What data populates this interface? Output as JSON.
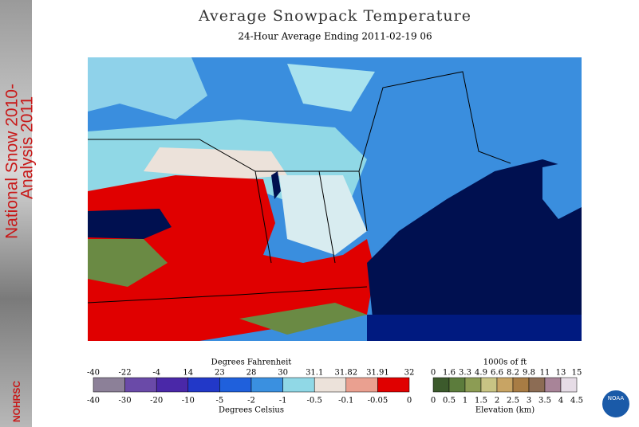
{
  "sidebar": {
    "line1": "National Snow 2010-",
    "line2": "Analysis 2011",
    "org": "NOHRSC"
  },
  "header": {
    "title": "Average Snowpack Temperature",
    "subtitle": "24-Hour Average Ending 2011-02-19 06"
  },
  "temperature_legend": {
    "top_label": "Degrees Fahrenheit",
    "bottom_label": "Degrees Celsius",
    "fahrenheit": [
      -40,
      -22,
      -4,
      14,
      23,
      28,
      30,
      31.1,
      31.82,
      31.91,
      32
    ],
    "celsius": [
      -40,
      -30,
      -20,
      -10,
      -5,
      -2,
      -1,
      -0.5,
      -0.1,
      -0.05,
      0
    ],
    "colors": [
      "#8c8098",
      "#6a4aa8",
      "#4a28a8",
      "#2238c8",
      "#1f60dc",
      "#3a90e0",
      "#90d8e6",
      "#ece2da",
      "#eaa090",
      "#e00000"
    ]
  },
  "elevation_legend": {
    "top_label": "1000s of ft",
    "bottom_label": "Elevation (km)",
    "feet": [
      0,
      1.6,
      3.3,
      4.9,
      6.6,
      8.2,
      9.8,
      11,
      13,
      15
    ],
    "km": [
      0,
      0.5,
      1,
      1.5,
      2,
      2.5,
      3,
      3.5,
      4,
      4.5
    ],
    "colors": [
      "#3c5a2c",
      "#5c7c3c",
      "#8c9c54",
      "#c8c484",
      "#c8a464",
      "#a87c44",
      "#8c6c54",
      "#a88498",
      "#e6dce6"
    ]
  },
  "logo": {
    "text": "NOAA"
  }
}
